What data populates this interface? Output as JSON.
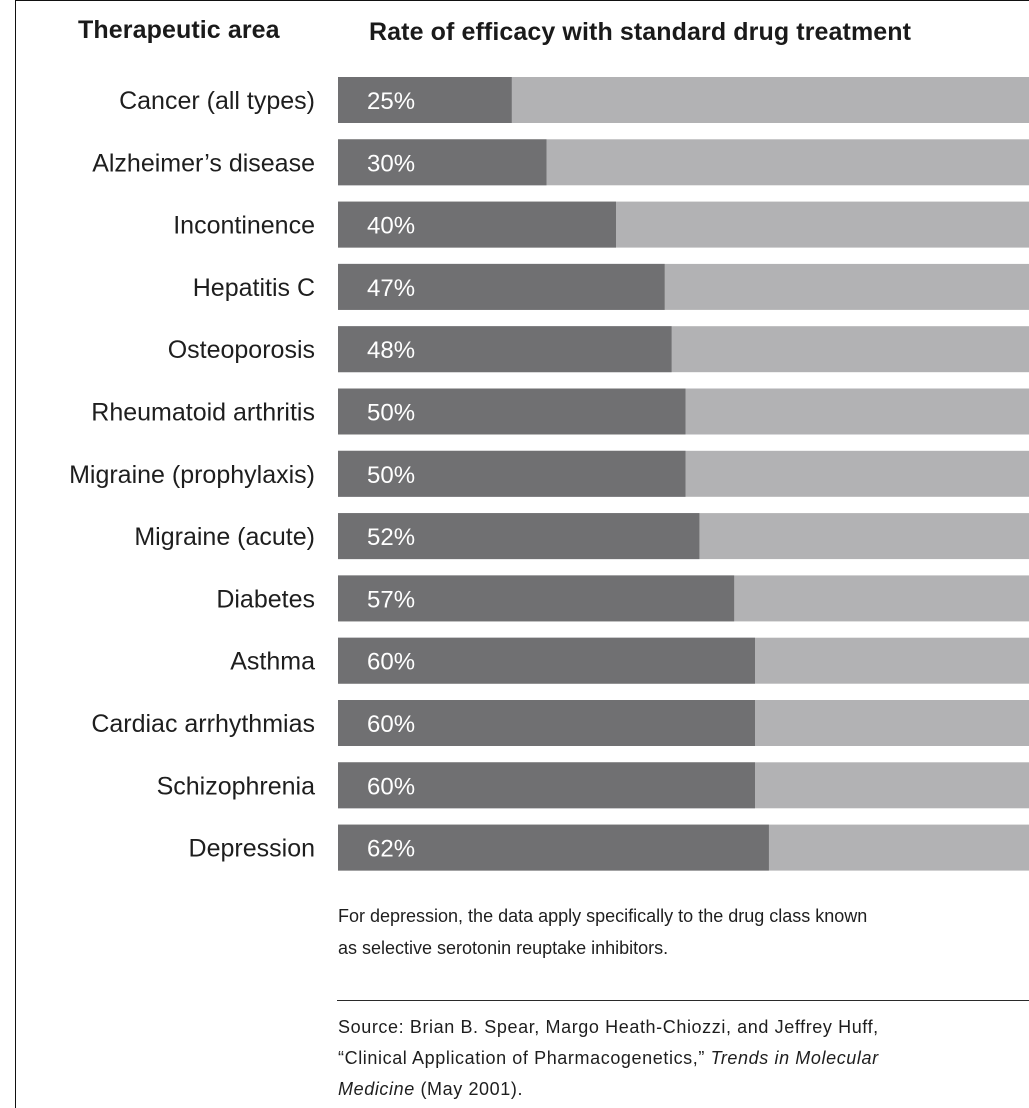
{
  "header": {
    "area_label": "Therapeutic area",
    "rate_label": "Rate of efficacy with standard drug treatment"
  },
  "chart_data": {
    "type": "bar",
    "orientation": "horizontal",
    "stacked_remainder": true,
    "categories": [
      "Cancer (all types)",
      "Alzheimer’s disease",
      "Incontinence",
      "Hepatitis C",
      "Osteoporosis",
      "Rheumatoid arthritis",
      "Migraine (prophylaxis)",
      "Migraine (acute)",
      "Diabetes",
      "Asthma",
      "Cardiac arrhythmias",
      "Schizophrenia",
      "Depression"
    ],
    "values": [
      25,
      30,
      40,
      47,
      48,
      50,
      50,
      52,
      57,
      60,
      60,
      60,
      62
    ],
    "value_labels": [
      "25%",
      "30%",
      "40%",
      "47%",
      "48%",
      "50%",
      "50%",
      "52%",
      "57%",
      "60%",
      "60%",
      "60%",
      "62%"
    ],
    "ylim": [
      0,
      100
    ],
    "colors": {
      "efficacy": "#707072",
      "remainder": "#b2b2b4",
      "value_label": "#ffffff",
      "category_label": "#1e1e1e"
    }
  },
  "note": {
    "line1": "For depression, the data apply specifically to the drug class known",
    "line2": "as selective serotonin reuptake inhibitors."
  },
  "source": {
    "line1": "Source: Brian B. Spear, Margo Heath-Chiozzi, and Jeffrey Huff,",
    "line2_plain": "“Clinical Application of Pharmacogenetics,” ",
    "line2_italic": "Trends in Molecular",
    "line3_italic": "Medicine",
    "line3_plain": " (May 2001)."
  }
}
